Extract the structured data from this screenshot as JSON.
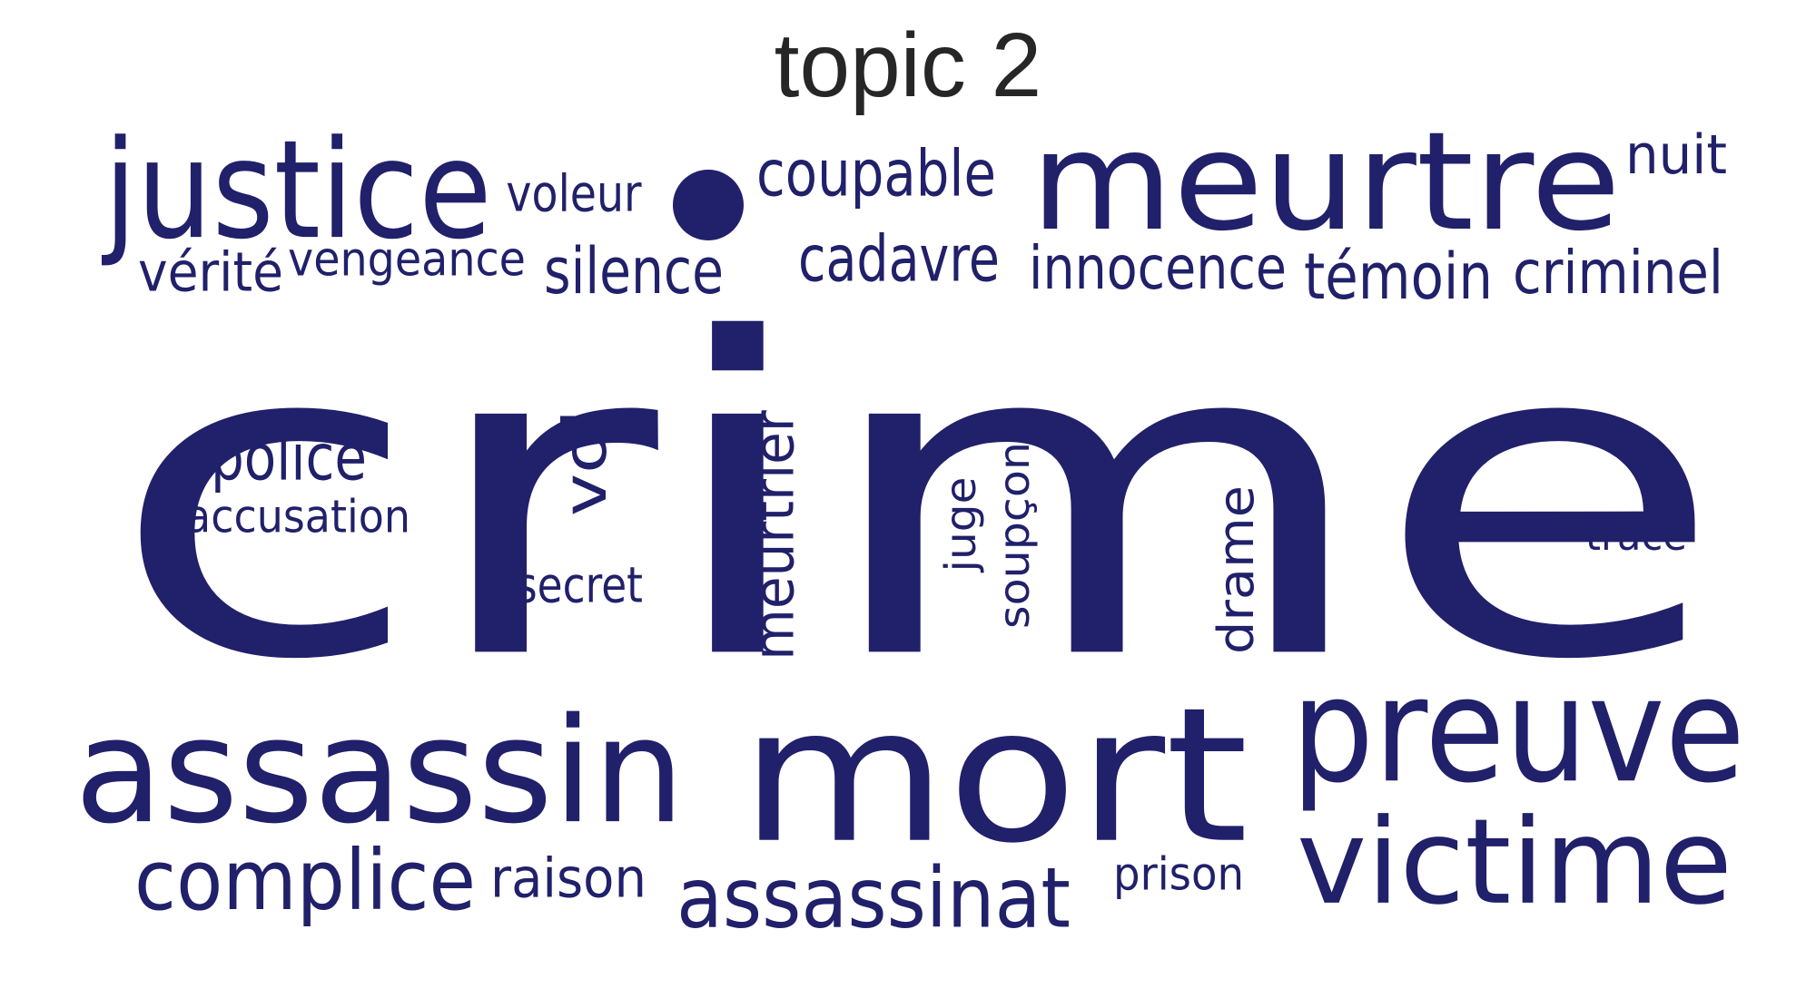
{
  "title": "topic 2",
  "word_color": "#21206a",
  "words": [
    {
      "id": "crime",
      "text": "crime"
    },
    {
      "id": "mort",
      "text": "mort"
    },
    {
      "id": "meurtre",
      "text": "meurtre"
    },
    {
      "id": "justice",
      "text": "justice"
    },
    {
      "id": "assassin",
      "text": "assassin"
    },
    {
      "id": "preuve",
      "text": "preuve"
    },
    {
      "id": "victime",
      "text": "victime"
    },
    {
      "id": "complice",
      "text": "complice"
    },
    {
      "id": "assassinat",
      "text": "assassinat"
    },
    {
      "id": "meurtrier",
      "text": "meurtrier"
    },
    {
      "id": "vol",
      "text": "vol"
    },
    {
      "id": "police",
      "text": "police"
    },
    {
      "id": "silence",
      "text": "silence"
    },
    {
      "id": "coupable",
      "text": "coupable"
    },
    {
      "id": "cadavre",
      "text": "cadavre"
    },
    {
      "id": "innocence",
      "text": "innocence"
    },
    {
      "id": "temoin",
      "text": "témoin"
    },
    {
      "id": "criminel",
      "text": "criminel"
    },
    {
      "id": "verite",
      "text": "vérité"
    },
    {
      "id": "vengeance",
      "text": "vengeance"
    },
    {
      "id": "voleur",
      "text": "voleur"
    },
    {
      "id": "nuit",
      "text": "nuit"
    },
    {
      "id": "raison",
      "text": "raison"
    },
    {
      "id": "drame",
      "text": "drame"
    },
    {
      "id": "accusation",
      "text": "accusation"
    },
    {
      "id": "secret",
      "text": "secret"
    },
    {
      "id": "soupcon",
      "text": "soupçon"
    },
    {
      "id": "juge",
      "text": "juge"
    },
    {
      "id": "prison",
      "text": "prison"
    },
    {
      "id": "trace",
      "text": "trace"
    }
  ]
}
